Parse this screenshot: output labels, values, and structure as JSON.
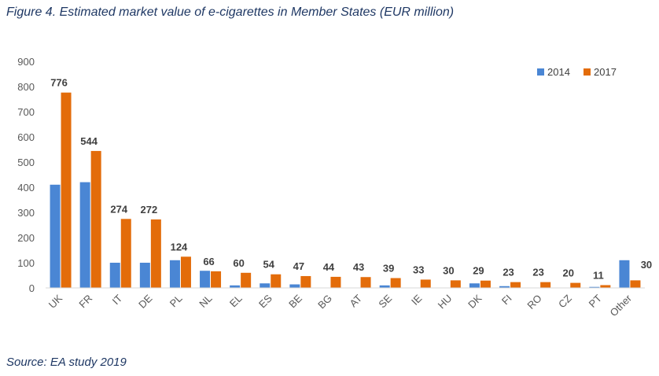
{
  "figure_title": "Figure 4. Estimated market value of e-cigarettes in Member States (EUR million)",
  "source": "Source: EA study 2019",
  "colors": {
    "2014": "#4a86d4",
    "2017": "#e36c0a"
  },
  "chart_data": {
    "type": "bar",
    "title": "Figure 4. Estimated market value of e-cigarettes in Member States (EUR million)",
    "xlabel": "",
    "ylabel": "",
    "ylim": [
      0,
      900
    ],
    "yticks": [
      0,
      100,
      200,
      300,
      400,
      500,
      600,
      700,
      800,
      900
    ],
    "grid": false,
    "legend_position": "top-right",
    "categories": [
      "UK",
      "FR",
      "IT",
      "DE",
      "PL",
      "NL",
      "EL",
      "ES",
      "BE",
      "BG",
      "AT",
      "SE",
      "IE",
      "HU",
      "DK",
      "FI",
      "RO",
      "CZ",
      "PT",
      "Other"
    ],
    "series": [
      {
        "name": "2014",
        "values": [
          410,
          420,
          100,
          100,
          110,
          68,
          10,
          18,
          14,
          0,
          0,
          10,
          0,
          0,
          18,
          7,
          0,
          0,
          4,
          110
        ]
      },
      {
        "name": "2017",
        "values": [
          776,
          544,
          274,
          272,
          124,
          66,
          60,
          54,
          47,
          44,
          43,
          39,
          33,
          30,
          29,
          23,
          23,
          20,
          11,
          30
        ]
      }
    ],
    "data_labels": [
      "776",
      "544",
      "274",
      "272",
      "124",
      "66",
      "60",
      "54",
      "47",
      "44",
      "43",
      "39",
      "33",
      "30",
      "29",
      "23",
      "23",
      "20",
      "11",
      "30"
    ]
  }
}
